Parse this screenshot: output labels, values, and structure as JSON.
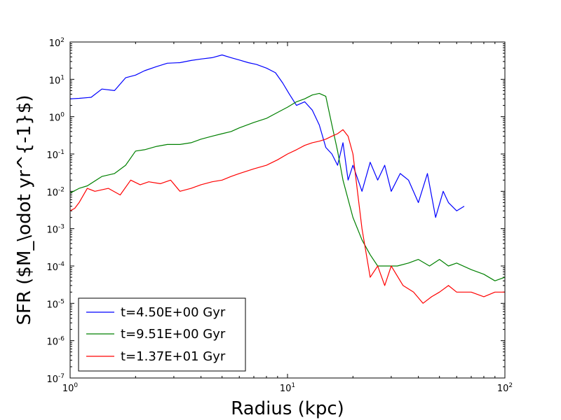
{
  "chart_data": {
    "type": "line",
    "title": "",
    "xlabel": "Radius (kpc)",
    "ylabel": "SFR ($M_\\odot yr^{-1}$)",
    "xscale": "log",
    "yscale": "log",
    "xlim": [
      1,
      100
    ],
    "ylim": [
      1e-07,
      100
    ],
    "x_ticks": [
      {
        "value": 1,
        "base": "10",
        "exp": "0"
      },
      {
        "value": 10,
        "base": "10",
        "exp": "1"
      },
      {
        "value": 100,
        "base": "10",
        "exp": "2"
      }
    ],
    "y_ticks": [
      {
        "value": 1e-07,
        "base": "10",
        "exp": "-7"
      },
      {
        "value": 1e-06,
        "base": "10",
        "exp": "-6"
      },
      {
        "value": 1e-05,
        "base": "10",
        "exp": "-5"
      },
      {
        "value": 0.0001,
        "base": "10",
        "exp": "-4"
      },
      {
        "value": 0.001,
        "base": "10",
        "exp": "-3"
      },
      {
        "value": 0.01,
        "base": "10",
        "exp": "-2"
      },
      {
        "value": 0.1,
        "base": "10",
        "exp": "-1"
      },
      {
        "value": 1,
        "base": "10",
        "exp": "0"
      },
      {
        "value": 10,
        "base": "10",
        "exp": "1"
      },
      {
        "value": 100,
        "base": "10",
        "exp": "2"
      }
    ],
    "grid": false,
    "legend_position": "lower-left",
    "series": [
      {
        "name": "t=4.50E+00 Gyr",
        "color": "#0000ff",
        "x": [
          1.0,
          1.1,
          1.25,
          1.4,
          1.6,
          1.8,
          2.0,
          2.2,
          2.5,
          2.8,
          3.2,
          3.6,
          4.0,
          4.5,
          5.0,
          5.5,
          6.0,
          6.6,
          7.2,
          8.0,
          8.8,
          9.5,
          10.2,
          11,
          12,
          13,
          14,
          15,
          16,
          17,
          18,
          19,
          20,
          22,
          24,
          26,
          28,
          30,
          33,
          36,
          40,
          44,
          48,
          52,
          55,
          60,
          65
        ],
        "y": [
          3.0,
          3.1,
          3.3,
          5.5,
          5.0,
          11,
          13,
          17,
          22,
          27,
          28,
          32,
          35,
          38,
          45,
          38,
          33,
          28,
          25,
          20,
          15,
          8,
          4.0,
          2.0,
          2.5,
          1.5,
          0.6,
          0.15,
          0.1,
          0.05,
          0.2,
          0.02,
          0.05,
          0.01,
          0.06,
          0.02,
          0.05,
          0.01,
          0.03,
          0.02,
          0.005,
          0.03,
          0.002,
          0.01,
          0.005,
          0.003,
          0.004
        ]
      },
      {
        "name": "t=9.51E+00 Gyr",
        "color": "#008000",
        "x": [
          1.0,
          1.1,
          1.2,
          1.4,
          1.6,
          1.8,
          2.0,
          2.2,
          2.5,
          2.8,
          3.2,
          3.6,
          4.0,
          4.5,
          5.0,
          5.5,
          6.0,
          7.0,
          8.0,
          9.0,
          10,
          11,
          12,
          13,
          14,
          15,
          16,
          17,
          18,
          20,
          22,
          24,
          26,
          28,
          32,
          36,
          40,
          45,
          50,
          55,
          60,
          70,
          80,
          90,
          100
        ],
        "y": [
          0.009,
          0.012,
          0.014,
          0.025,
          0.03,
          0.05,
          0.12,
          0.13,
          0.16,
          0.18,
          0.18,
          0.2,
          0.25,
          0.3,
          0.35,
          0.4,
          0.5,
          0.7,
          0.9,
          1.3,
          1.8,
          2.5,
          3.0,
          3.8,
          4.2,
          3.5,
          0.6,
          0.12,
          0.02,
          0.002,
          0.0005,
          0.0002,
          0.0001,
          0.0001,
          0.0001,
          0.00012,
          0.00015,
          0.0001,
          0.00015,
          0.0001,
          0.00012,
          8e-05,
          6e-05,
          4e-05,
          5e-05
        ]
      },
      {
        "name": "t=1.37E+01 Gyr",
        "color": "#ff0000",
        "x": [
          1.0,
          1.05,
          1.1,
          1.2,
          1.3,
          1.5,
          1.7,
          1.9,
          2.1,
          2.3,
          2.6,
          2.9,
          3.2,
          3.6,
          4.0,
          4.5,
          5.0,
          5.5,
          6.0,
          7.0,
          8.0,
          9.0,
          10,
          11,
          12,
          13,
          14,
          15,
          16,
          17,
          18,
          19,
          20,
          22,
          24,
          26,
          28,
          30,
          34,
          38,
          42,
          46,
          50,
          55,
          60,
          70,
          80,
          90,
          100
        ],
        "y": [
          0.003,
          0.0035,
          0.005,
          0.012,
          0.01,
          0.012,
          0.008,
          0.02,
          0.015,
          0.018,
          0.016,
          0.02,
          0.01,
          0.012,
          0.015,
          0.018,
          0.02,
          0.025,
          0.03,
          0.04,
          0.05,
          0.07,
          0.1,
          0.13,
          0.17,
          0.2,
          0.22,
          0.25,
          0.3,
          0.35,
          0.45,
          0.3,
          0.1,
          0.001,
          5e-05,
          0.0001,
          3e-05,
          0.0001,
          3e-05,
          2e-05,
          1e-05,
          1.5e-05,
          2e-05,
          3e-05,
          2e-05,
          2e-05,
          1.5e-05,
          2e-05,
          2e-05
        ]
      }
    ]
  }
}
